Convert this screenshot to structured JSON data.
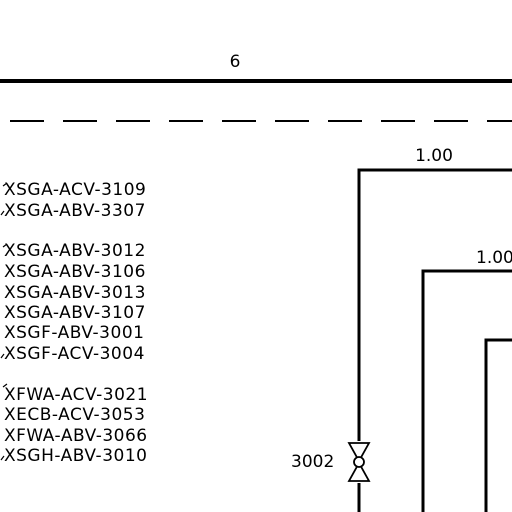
{
  "drawing": {
    "zone_number": "6",
    "pipe_labels": [
      "1.00",
      "1.00"
    ],
    "valve_tag": "3002",
    "tag_groups": [
      [
        "XSGA-ACV-3109",
        "XSGA-ABV-3307"
      ],
      [
        "XSGA-ABV-3012",
        "XSGA-ABV-3106",
        "XSGA-ABV-3013",
        "XSGA-ABV-3107",
        "XSGF-ABV-3001",
        "XSGF-ACV-3004"
      ],
      [
        "XFWA-ACV-3021",
        "XECB-ACV-3053",
        "XFWA-ABV-3066",
        "XSGH-ABV-3010"
      ]
    ]
  }
}
